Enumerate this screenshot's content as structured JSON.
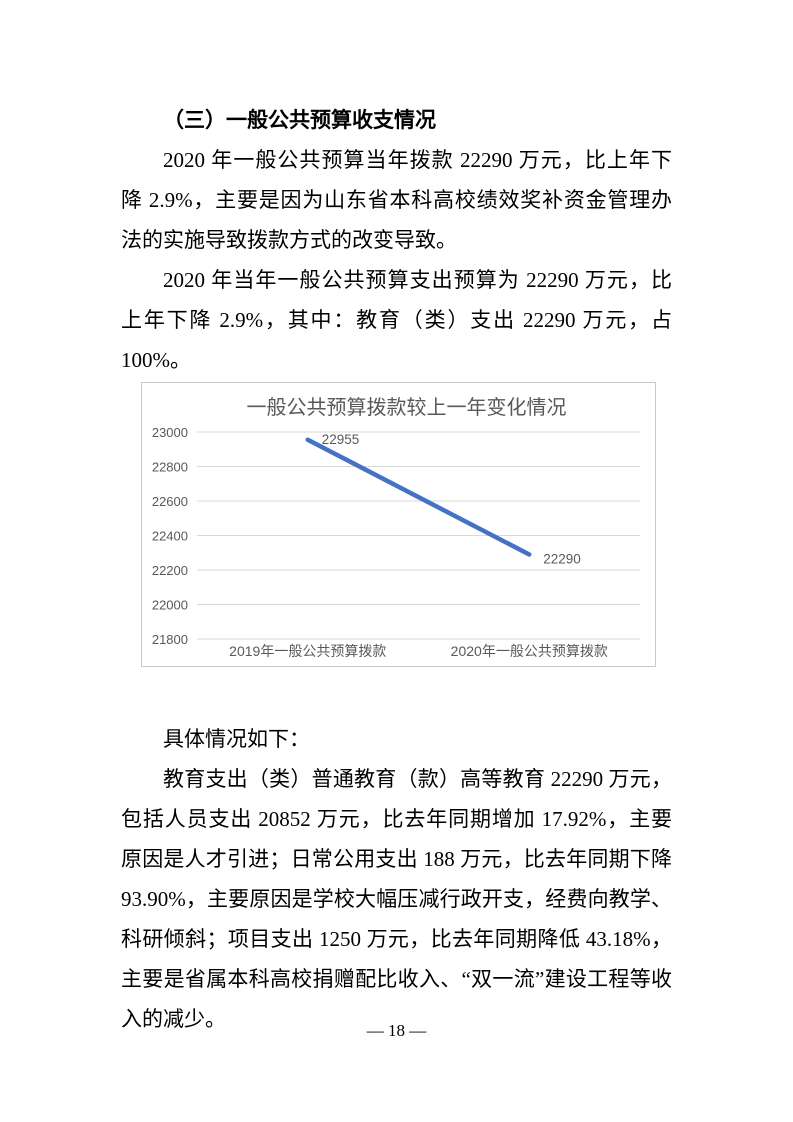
{
  "page": {
    "number_label": "— 18 —"
  },
  "document": {
    "heading": "（三）一般公共预算收支情况",
    "paragraphs": [
      "2020 年一般公共预算当年拨款 22290 万元，比上年下降 2.9%，主要是因为山东省本科高校绩效奖补资金管理办法的实施导致拨款方式的改变导致。",
      "2020 年当年一般公共预算支出预算为 22290 万元，比上年下降 2.9%，其中：教育（类）支出 22290 万元，占 100%。"
    ],
    "followup_intro": "具体情况如下：",
    "followup_detail": "教育支出（类）普通教育（款）高等教育 22290 万元，包括人员支出 20852 万元，比去年同期增加 17.92%，主要原因是人才引进；日常公用支出 188 万元，比去年同期下降 93.90%，主要原因是学校大幅压减行政开支，经费向教学、科研倾斜；项目支出 1250 万元，比去年同期降低 43.18%，主要是省属本科高校捐赠配比收入、“双一流”建设工程等收入的减少。"
  },
  "chart_data": {
    "type": "line",
    "title": "一般公共预算拨款较上一年变化情况",
    "categories": [
      "2019年一般公共预算拨款",
      "2020年一般公共预算拨款"
    ],
    "values": [
      22955,
      22290
    ],
    "data_labels": [
      "22955",
      "22290"
    ],
    "xlabel": "",
    "ylabel": "",
    "ylim": [
      21800,
      23000
    ],
    "yticks": [
      21800,
      22000,
      22200,
      22400,
      22600,
      22800,
      23000
    ],
    "grid": true,
    "legend": "none",
    "line_color": "#4472c4",
    "grid_color": "#d9d9d9",
    "text_color": "#595959",
    "border_color": "#c9c9c9"
  }
}
